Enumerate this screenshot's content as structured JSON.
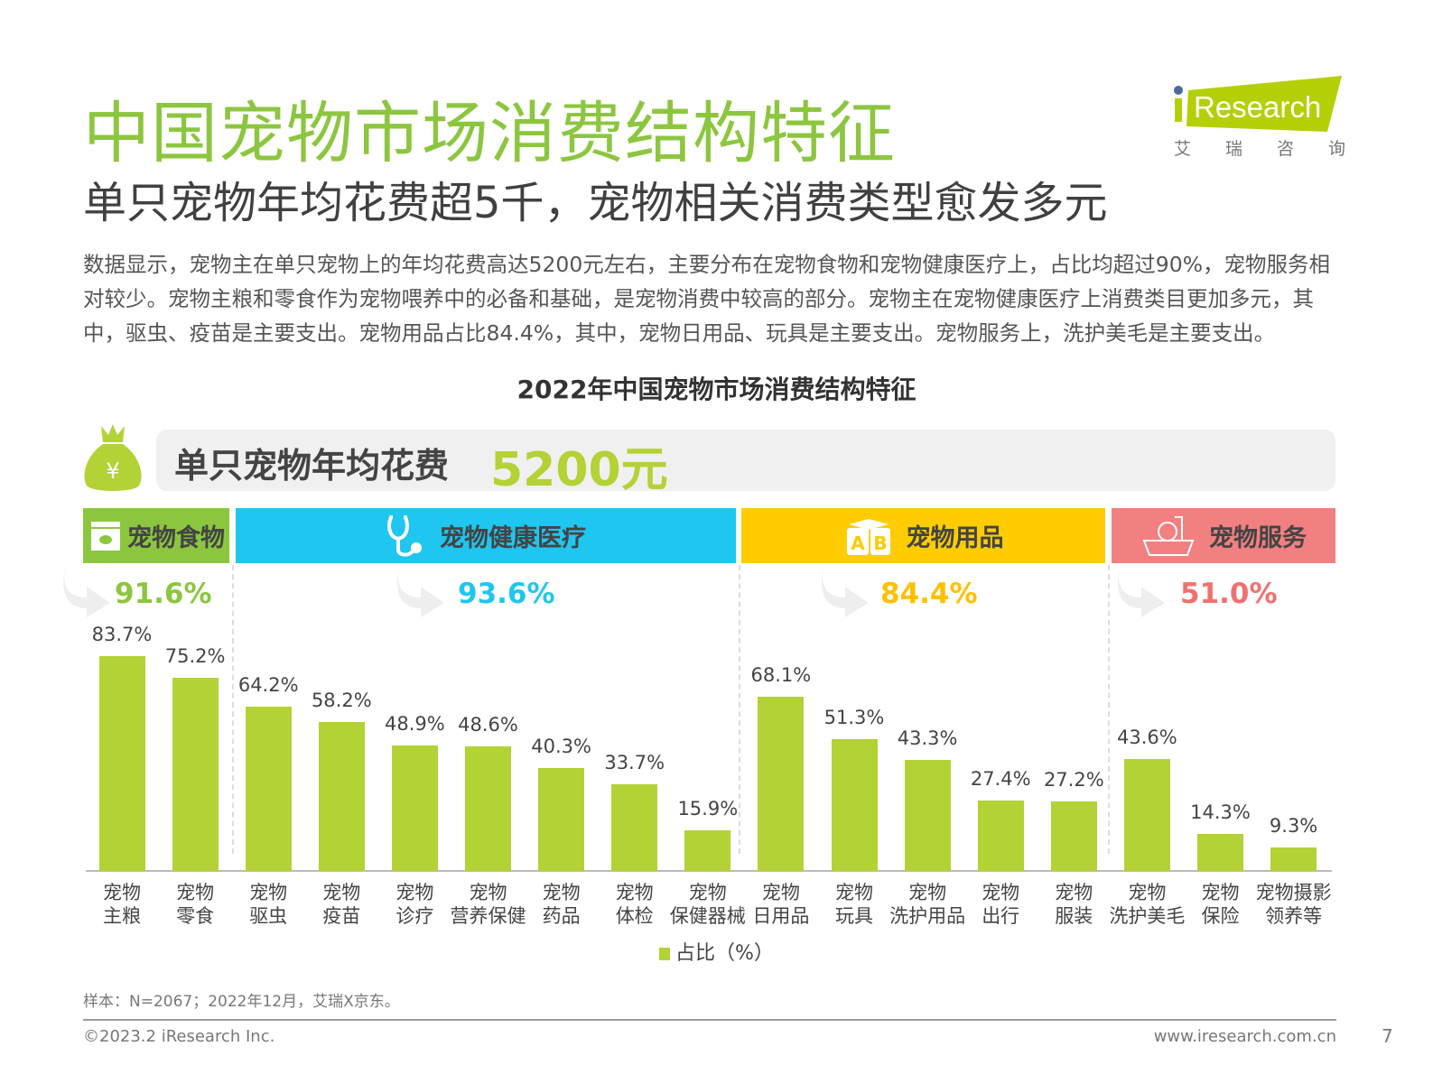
{
  "header": {
    "title": "中国宠物市场消费结构特征",
    "subtitle": "单只宠物年均花费超5千，宠物相关消费类型愈发多元"
  },
  "logo": {
    "text": "iResearch",
    "cn": [
      "艾",
      "瑞",
      "咨",
      "询"
    ],
    "color": "#b5cf06"
  },
  "description": "数据显示，宠物主在单只宠物上的年均花费高达5200元左右，主要分布在宠物食物和宠物健康医疗上，占比均超过90%，宠物服务相对较少。宠物主粮和零食作为宠物喂养中的必备和基础，是宠物消费中较高的部分。宠物主在宠物健康医疗上消费类目更加多元，其中，驱虫、疫苗是主要支出。宠物用品占比84.4%，其中，宠物日用品、玩具是主要支出。宠物服务上，洗护美毛是主要支出。",
  "banner": {
    "label": "单只宠物年均花费",
    "value": "5200元",
    "icon": "money-bag-icon"
  },
  "groups": [
    {
      "name": "宠物食物",
      "pct": "91.6%",
      "color": "#8cc63f",
      "text_color": "#8cc63f",
      "icon": "pet-food-icon"
    },
    {
      "name": "宠物健康医疗",
      "pct": "93.6%",
      "color": "#1fc6ef",
      "text_color": "#1fc6ef",
      "icon": "stethoscope-icon"
    },
    {
      "name": "宠物用品",
      "pct": "84.4%",
      "color": "#ffcc00",
      "text_color": "#ffc000",
      "icon": "abc-block-icon"
    },
    {
      "name": "宠物服务",
      "pct": "51.0%",
      "color": "#f28080",
      "text_color": "#f07070",
      "icon": "pet-bath-icon"
    }
  ],
  "chart_data": {
    "type": "bar",
    "title": "2022年中国宠物市场消费结构特征",
    "categories": [
      "宠物\n主粮",
      "宠物\n零食",
      "宠物\n驱虫",
      "宠物\n疫苗",
      "宠物\n诊疗",
      "宠物\n营养保健",
      "宠物\n药品",
      "宠物\n体检",
      "宠物\n保健器械",
      "宠物\n日用品",
      "宠物\n玩具",
      "宠物\n洗护用品",
      "宠物\n出行",
      "宠物\n服装",
      "宠物\n洗护美毛",
      "宠物\n保险",
      "宠物摄影\n领养等"
    ],
    "groups": [
      0,
      0,
      1,
      1,
      1,
      1,
      1,
      1,
      1,
      2,
      2,
      2,
      2,
      2,
      3,
      3,
      3
    ],
    "series": [
      {
        "name": "占比（%）",
        "values": [
          83.7,
          75.2,
          64.2,
          58.2,
          48.9,
          48.6,
          40.3,
          33.7,
          15.9,
          68.1,
          51.3,
          43.3,
          27.4,
          27.2,
          43.6,
          14.3,
          9.3
        ],
        "color": "#b2d235"
      }
    ],
    "value_labels": [
      "83.7%",
      "75.2%",
      "64.2%",
      "58.2%",
      "48.9%",
      "48.6%",
      "40.3%",
      "33.7%",
      "15.9%",
      "68.1%",
      "51.3%",
      "43.3%",
      "27.4%",
      "27.2%",
      "43.6%",
      "14.3%",
      "9.3%"
    ],
    "ylim": [
      0,
      100
    ],
    "grid": false,
    "legend": "bottom"
  },
  "legend_label": "占比（%）",
  "footer": {
    "source": "样本：N=2067；2022年12月，艾瑞X京东。",
    "copyright": "©2023.2 iResearch Inc.",
    "url": "www.iresearch.com.cn",
    "page": "7"
  }
}
